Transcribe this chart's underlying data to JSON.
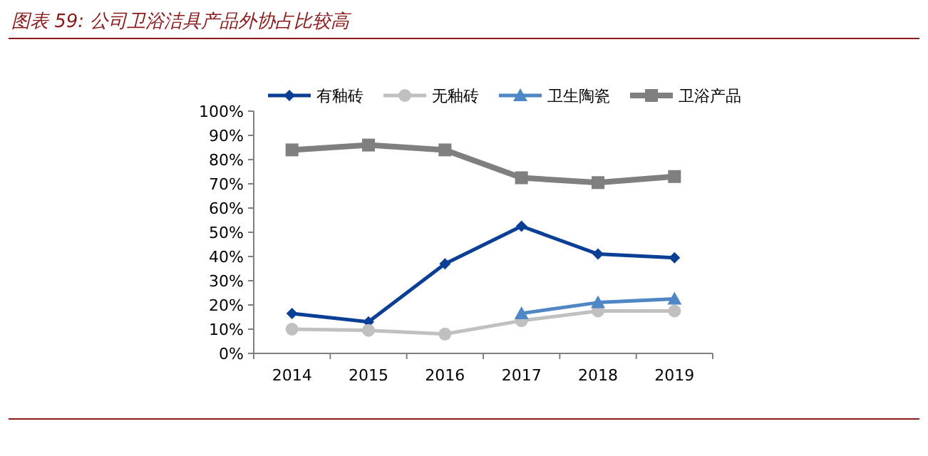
{
  "chart_data": {
    "type": "line",
    "title": "图表 59:  公司卫浴洁具产品外协占比较高",
    "categories": [
      "2014",
      "2015",
      "2016",
      "2017",
      "2018",
      "2019"
    ],
    "series": [
      {
        "name": "有釉砖",
        "color": "#0b3f96",
        "marker": "diamond",
        "values": [
          16.5,
          13,
          37,
          52.5,
          41,
          39.5
        ]
      },
      {
        "name": "无釉砖",
        "color": "#c0c0c0",
        "marker": "circle",
        "values": [
          10,
          9.5,
          8,
          13.5,
          17.5,
          17.5
        ]
      },
      {
        "name": "卫生陶瓷",
        "color": "#4f86c6",
        "marker": "triangle",
        "values": [
          null,
          null,
          null,
          16.5,
          21,
          22.5
        ]
      },
      {
        "name": "卫浴产品",
        "color": "#7f7f7f",
        "marker": "square",
        "values": [
          84,
          86,
          84,
          72.5,
          70.5,
          73
        ]
      }
    ],
    "ylim": [
      0,
      100
    ],
    "yticks": [
      {
        "value": 0,
        "label": "0%"
      },
      {
        "value": 10,
        "label": "10%"
      },
      {
        "value": 20,
        "label": "20%"
      },
      {
        "value": 30,
        "label": "30%"
      },
      {
        "value": 40,
        "label": "40%"
      },
      {
        "value": 50,
        "label": "50%"
      },
      {
        "value": 60,
        "label": "60%"
      },
      {
        "value": 70,
        "label": "70%"
      },
      {
        "value": 80,
        "label": "80%"
      },
      {
        "value": 90,
        "label": "90%"
      },
      {
        "value": 100,
        "label": "100%"
      }
    ],
    "legend": "top",
    "grid": false
  }
}
